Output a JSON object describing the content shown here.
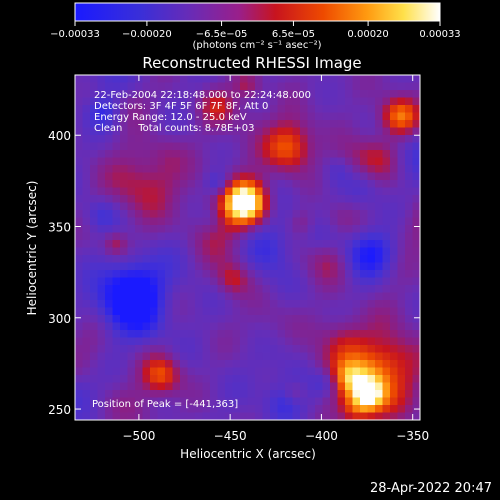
{
  "chart_data": {
    "type": "heatmap",
    "title": "Reconstructed RHESSI Image",
    "xlabel": "Heliocentric X (arcsec)",
    "ylabel": "Heliocentric Y (arcsec)",
    "xlim": [
      -535,
      -346
    ],
    "ylim": [
      244,
      433
    ],
    "xticks": [
      {
        "value": -500,
        "label": "−500"
      },
      {
        "value": -450,
        "label": "−450"
      },
      {
        "value": -400,
        "label": "−400"
      },
      {
        "value": -350,
        "label": "−350"
      }
    ],
    "yticks": [
      {
        "value": 250,
        "label": "250"
      },
      {
        "value": 300,
        "label": "300"
      },
      {
        "value": 350,
        "label": "350"
      },
      {
        "value": 400,
        "label": "400"
      }
    ],
    "colorbar": {
      "range": [
        -0.00033,
        0.00033
      ],
      "ticks": [
        {
          "value": -0.00033,
          "label": "−0.00033"
        },
        {
          "value": -0.0002,
          "label": "−0.00020"
        },
        {
          "value": -6.5e-05,
          "label": "−6.5e−05"
        },
        {
          "value": 6.5e-05,
          "label": "6.5e−05"
        },
        {
          "value": 0.0002,
          "label": "0.00020"
        },
        {
          "value": 0.00033,
          "label": "0.00033"
        }
      ],
      "unit_label": "(photons cm⁻² s⁻¹ asec⁻²)"
    },
    "annotations": [
      "22-Feb-2004 22:18:48.000 to 22:24:48.000",
      "Detectors: 3F 4F 5F 6F 7F 8F, Att 0",
      "Energy Range: 12.0 - 25.0 keV",
      "Clean     Total counts: 8.78E+03"
    ],
    "peak_label": "Position of Peak = [-441,363]",
    "peak": [
      -441,
      363
    ],
    "grid": false,
    "colormap": "rainbow-hot (blue-purple-red-orange-yellow-white)"
  },
  "footer": {
    "timestamp": "28-Apr-2022 20:47"
  }
}
